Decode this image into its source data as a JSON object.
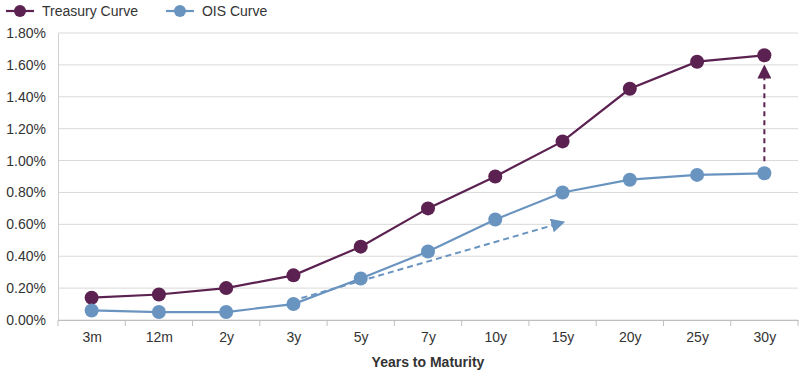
{
  "chart_data": {
    "type": "line",
    "x_label": "Years to Maturity",
    "categories": [
      "3m",
      "12m",
      "2y",
      "3y",
      "5y",
      "7y",
      "10y",
      "15y",
      "20y",
      "25y",
      "30y"
    ],
    "series": [
      {
        "name": "Treasury Curve",
        "color": "#5b2150",
        "marker": "circle",
        "line_style": "solid",
        "values": [
          0.14,
          0.16,
          0.2,
          0.28,
          0.46,
          0.7,
          0.9,
          1.12,
          1.45,
          1.62,
          1.66
        ]
      },
      {
        "name": "OIS Curve",
        "color": "#6a94c0",
        "marker": "circle",
        "line_style": "solid",
        "values": [
          0.06,
          0.05,
          0.05,
          0.1,
          0.26,
          0.43,
          0.63,
          0.8,
          0.88,
          0.91,
          0.92
        ]
      }
    ],
    "ylim": [
      0,
      1.8
    ],
    "yticks": [
      {
        "value": 0,
        "label": "0.00%"
      },
      {
        "value": 0.2,
        "label": "0.20%"
      },
      {
        "value": 0.4,
        "label": "0.40%"
      },
      {
        "value": 0.6,
        "label": "0.60%"
      },
      {
        "value": 0.8,
        "label": "0.80%"
      },
      {
        "value": 1.0,
        "label": "1.00%"
      },
      {
        "value": 1.2,
        "label": "1.20%"
      },
      {
        "value": 1.4,
        "label": "1.40%"
      },
      {
        "value": 1.6,
        "label": "1.60%"
      },
      {
        "value": 1.8,
        "label": "1.80%"
      }
    ],
    "grid": true,
    "legend": "top-left"
  }
}
